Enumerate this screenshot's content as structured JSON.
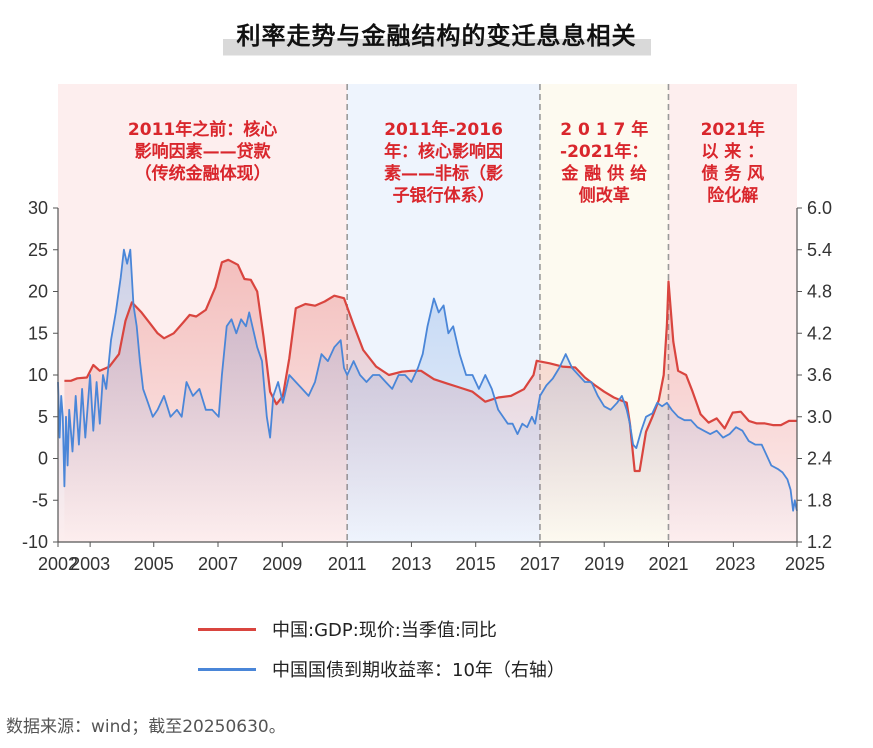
{
  "title": "利率走势与金融结构的变迁息息相关",
  "source": "数据来源：wind；截至20250630。",
  "colors": {
    "gdp": "#d9453f",
    "bond": "#4a86d8",
    "period1_bg": "#fdeeee",
    "period2_bg": "#eef4fd",
    "period3_bg": "#fdfaf0",
    "period4_bg": "#fdeeee",
    "annotation": "#d9262c"
  },
  "periods": [
    {
      "start": 2002.0,
      "end": 2011.0,
      "label_lines": [
        "2011年之前：核心",
        "影响因素——贷款",
        "（传统金融体现）"
      ]
    },
    {
      "start": 2011.0,
      "end": 2017.0,
      "label_lines": [
        "2011年-2016",
        "年：核心影响因",
        "素——非标（影",
        "子银行体系）"
      ]
    },
    {
      "start": 2017.0,
      "end": 2021.0,
      "label_lines": [
        "2 0 1 7 年",
        "-2021年：",
        "金 融 供 给",
        "侧改革"
      ]
    },
    {
      "start": 2021.0,
      "end": 2025.0,
      "label_lines": [
        "2021年",
        "以 来 ：",
        "债 务 风",
        "险化解"
      ]
    }
  ],
  "chart_data": {
    "type": "line",
    "title": "利率走势与金融结构的变迁息息相关",
    "x_ticks": [
      "2002",
      "2003",
      "2005",
      "2007",
      "2009",
      "2011",
      "2013",
      "2015",
      "2017",
      "2019",
      "2021",
      "2023",
      "2025"
    ],
    "x_tick_positions": [
      2002,
      2003,
      2004.98,
      2006.98,
      2008.98,
      2011,
      2013,
      2015,
      2017,
      2019,
      2021,
      2023.02,
      2025
    ],
    "xlim": [
      2002,
      2025
    ],
    "y_left": {
      "ticks": [
        30,
        25,
        20,
        15,
        10,
        5,
        0,
        -5,
        -10
      ],
      "lim": [
        -10,
        30
      ]
    },
    "y_right": {
      "ticks": [
        "6.0",
        "5.4",
        "4.8",
        "4.2",
        "3.6",
        "3.0",
        "2.4",
        "1.8",
        "1.2"
      ],
      "lim": [
        1.2,
        6.0
      ]
    },
    "grid": false,
    "legend_position": "bottom",
    "series": [
      {
        "name": "中国:GDP:现价:当季值:同比",
        "axis": "left",
        "points": [
          [
            2002.2,
            9.3
          ],
          [
            2002.4,
            9.3
          ],
          [
            2002.6,
            9.6
          ],
          [
            2002.9,
            9.7
          ],
          [
            2003.1,
            11.2
          ],
          [
            2003.3,
            10.5
          ],
          [
            2003.6,
            11.0
          ],
          [
            2003.9,
            12.5
          ],
          [
            2004.1,
            16.5
          ],
          [
            2004.3,
            18.7
          ],
          [
            2004.6,
            17.5
          ],
          [
            2004.9,
            16.0
          ],
          [
            2005.1,
            15.0
          ],
          [
            2005.3,
            14.4
          ],
          [
            2005.6,
            15.0
          ],
          [
            2005.9,
            16.3
          ],
          [
            2006.1,
            17.2
          ],
          [
            2006.3,
            17.0
          ],
          [
            2006.6,
            17.8
          ],
          [
            2006.9,
            20.5
          ],
          [
            2007.1,
            23.5
          ],
          [
            2007.3,
            23.8
          ],
          [
            2007.6,
            23.2
          ],
          [
            2007.8,
            21.5
          ],
          [
            2008.0,
            21.4
          ],
          [
            2008.2,
            20.0
          ],
          [
            2008.4,
            14.5
          ],
          [
            2008.6,
            8.0
          ],
          [
            2008.8,
            6.5
          ],
          [
            2009.0,
            7.5
          ],
          [
            2009.2,
            12.0
          ],
          [
            2009.4,
            18.0
          ],
          [
            2009.7,
            18.5
          ],
          [
            2010.0,
            18.3
          ],
          [
            2010.3,
            18.8
          ],
          [
            2010.6,
            19.5
          ],
          [
            2010.9,
            19.2
          ],
          [
            2011.2,
            16.0
          ],
          [
            2011.5,
            13.0
          ],
          [
            2011.9,
            11.0
          ],
          [
            2012.3,
            10.0
          ],
          [
            2012.7,
            10.4
          ],
          [
            2013.0,
            10.5
          ],
          [
            2013.3,
            10.5
          ],
          [
            2013.7,
            9.5
          ],
          [
            2014.1,
            9.0
          ],
          [
            2014.5,
            8.5
          ],
          [
            2014.9,
            8.0
          ],
          [
            2015.3,
            6.8
          ],
          [
            2015.7,
            7.3
          ],
          [
            2016.1,
            7.5
          ],
          [
            2016.5,
            8.3
          ],
          [
            2016.8,
            10.0
          ],
          [
            2016.9,
            11.7
          ],
          [
            2017.3,
            11.4
          ],
          [
            2017.7,
            11.0
          ],
          [
            2018.1,
            10.9
          ],
          [
            2018.4,
            9.7
          ],
          [
            2018.7,
            8.8
          ],
          [
            2019.0,
            8.0
          ],
          [
            2019.3,
            7.3
          ],
          [
            2019.5,
            7.0
          ],
          [
            2019.7,
            6.7
          ],
          [
            2019.8,
            4.2
          ],
          [
            2019.95,
            -1.5
          ],
          [
            2020.1,
            -1.5
          ],
          [
            2020.3,
            3.2
          ],
          [
            2020.5,
            5.0
          ],
          [
            2020.7,
            7.0
          ],
          [
            2020.85,
            10.0
          ],
          [
            2020.95,
            16.0
          ],
          [
            2021.0,
            21.2
          ],
          [
            2021.15,
            14.0
          ],
          [
            2021.3,
            10.5
          ],
          [
            2021.55,
            10.0
          ],
          [
            2021.75,
            8.0
          ],
          [
            2022.0,
            5.3
          ],
          [
            2022.25,
            4.3
          ],
          [
            2022.5,
            4.8
          ],
          [
            2022.75,
            3.6
          ],
          [
            2023.0,
            5.5
          ],
          [
            2023.25,
            5.6
          ],
          [
            2023.5,
            4.5
          ],
          [
            2023.75,
            4.2
          ],
          [
            2024.0,
            4.2
          ],
          [
            2024.25,
            4.0
          ],
          [
            2024.5,
            4.0
          ],
          [
            2024.75,
            4.5
          ],
          [
            2025.0,
            4.5
          ]
        ]
      },
      {
        "name": "中国国债到期收益率：10年（右轴）",
        "axis": "right",
        "points": [
          [
            2002.0,
            3.5
          ],
          [
            2002.05,
            2.7
          ],
          [
            2002.1,
            3.3
          ],
          [
            2002.15,
            3.0
          ],
          [
            2002.2,
            2.0
          ],
          [
            2002.25,
            3.0
          ],
          [
            2002.3,
            2.3
          ],
          [
            2002.35,
            3.1
          ],
          [
            2002.45,
            2.5
          ],
          [
            2002.55,
            3.3
          ],
          [
            2002.65,
            2.6
          ],
          [
            2002.75,
            3.4
          ],
          [
            2002.85,
            2.7
          ],
          [
            2003.0,
            3.6
          ],
          [
            2003.1,
            2.8
          ],
          [
            2003.2,
            3.5
          ],
          [
            2003.3,
            2.9
          ],
          [
            2003.4,
            3.6
          ],
          [
            2003.5,
            3.4
          ],
          [
            2003.65,
            4.1
          ],
          [
            2003.8,
            4.5
          ],
          [
            2003.95,
            5.0
          ],
          [
            2004.05,
            5.4
          ],
          [
            2004.15,
            5.2
          ],
          [
            2004.25,
            5.4
          ],
          [
            2004.35,
            4.6
          ],
          [
            2004.45,
            4.3
          ],
          [
            2004.55,
            3.8
          ],
          [
            2004.65,
            3.4
          ],
          [
            2004.8,
            3.2
          ],
          [
            2004.95,
            3.0
          ],
          [
            2005.1,
            3.1
          ],
          [
            2005.3,
            3.3
          ],
          [
            2005.5,
            3.0
          ],
          [
            2005.7,
            3.1
          ],
          [
            2005.85,
            3.0
          ],
          [
            2006.0,
            3.5
          ],
          [
            2006.2,
            3.3
          ],
          [
            2006.4,
            3.4
          ],
          [
            2006.6,
            3.1
          ],
          [
            2006.8,
            3.1
          ],
          [
            2007.0,
            3.0
          ],
          [
            2007.1,
            3.6
          ],
          [
            2007.25,
            4.3
          ],
          [
            2007.4,
            4.4
          ],
          [
            2007.55,
            4.2
          ],
          [
            2007.7,
            4.4
          ],
          [
            2007.85,
            4.3
          ],
          [
            2007.95,
            4.5
          ],
          [
            2008.05,
            4.3
          ],
          [
            2008.2,
            4.0
          ],
          [
            2008.35,
            3.8
          ],
          [
            2008.5,
            3.0
          ],
          [
            2008.6,
            2.7
          ],
          [
            2008.7,
            3.3
          ],
          [
            2008.85,
            3.5
          ],
          [
            2009.0,
            3.2
          ],
          [
            2009.2,
            3.6
          ],
          [
            2009.4,
            3.5
          ],
          [
            2009.6,
            3.4
          ],
          [
            2009.8,
            3.3
          ],
          [
            2010.0,
            3.5
          ],
          [
            2010.2,
            3.9
          ],
          [
            2010.4,
            3.8
          ],
          [
            2010.6,
            4.0
          ],
          [
            2010.8,
            4.1
          ],
          [
            2010.9,
            3.7
          ],
          [
            2011.0,
            3.6
          ],
          [
            2011.2,
            3.8
          ],
          [
            2011.4,
            3.6
          ],
          [
            2011.6,
            3.5
          ],
          [
            2011.8,
            3.6
          ],
          [
            2012.0,
            3.6
          ],
          [
            2012.2,
            3.5
          ],
          [
            2012.4,
            3.4
          ],
          [
            2012.6,
            3.6
          ],
          [
            2012.8,
            3.6
          ],
          [
            2013.0,
            3.5
          ],
          [
            2013.2,
            3.7
          ],
          [
            2013.35,
            3.9
          ],
          [
            2013.5,
            4.3
          ],
          [
            2013.7,
            4.7
          ],
          [
            2013.85,
            4.5
          ],
          [
            2014.0,
            4.6
          ],
          [
            2014.15,
            4.2
          ],
          [
            2014.3,
            4.3
          ],
          [
            2014.5,
            3.9
          ],
          [
            2014.7,
            3.6
          ],
          [
            2014.9,
            3.6
          ],
          [
            2015.1,
            3.4
          ],
          [
            2015.3,
            3.6
          ],
          [
            2015.5,
            3.4
          ],
          [
            2015.7,
            3.1
          ],
          [
            2015.85,
            3.0
          ],
          [
            2016.0,
            2.9
          ],
          [
            2016.15,
            2.9
          ],
          [
            2016.3,
            2.75
          ],
          [
            2016.45,
            2.9
          ],
          [
            2016.6,
            2.85
          ],
          [
            2016.75,
            3.0
          ],
          [
            2016.85,
            2.9
          ],
          [
            2017.0,
            3.3
          ],
          [
            2017.2,
            3.45
          ],
          [
            2017.4,
            3.55
          ],
          [
            2017.6,
            3.7
          ],
          [
            2017.8,
            3.9
          ],
          [
            2018.0,
            3.7
          ],
          [
            2018.2,
            3.6
          ],
          [
            2018.4,
            3.5
          ],
          [
            2018.6,
            3.5
          ],
          [
            2018.8,
            3.3
          ],
          [
            2019.0,
            3.15
          ],
          [
            2019.2,
            3.1
          ],
          [
            2019.4,
            3.2
          ],
          [
            2019.55,
            3.3
          ],
          [
            2019.7,
            3.1
          ],
          [
            2019.8,
            2.9
          ],
          [
            2019.9,
            2.6
          ],
          [
            2020.0,
            2.55
          ],
          [
            2020.15,
            2.8
          ],
          [
            2020.3,
            3.0
          ],
          [
            2020.5,
            3.05
          ],
          [
            2020.65,
            3.2
          ],
          [
            2020.8,
            3.15
          ],
          [
            2020.95,
            3.2
          ],
          [
            2021.1,
            3.1
          ],
          [
            2021.3,
            3.0
          ],
          [
            2021.5,
            2.95
          ],
          [
            2021.7,
            2.95
          ],
          [
            2021.9,
            2.85
          ],
          [
            2022.1,
            2.8
          ],
          [
            2022.3,
            2.75
          ],
          [
            2022.5,
            2.8
          ],
          [
            2022.7,
            2.7
          ],
          [
            2022.9,
            2.75
          ],
          [
            2023.1,
            2.85
          ],
          [
            2023.3,
            2.8
          ],
          [
            2023.5,
            2.65
          ],
          [
            2023.7,
            2.6
          ],
          [
            2023.9,
            2.6
          ],
          [
            2024.05,
            2.45
          ],
          [
            2024.2,
            2.3
          ],
          [
            2024.4,
            2.25
          ],
          [
            2024.55,
            2.2
          ],
          [
            2024.7,
            2.1
          ],
          [
            2024.8,
            1.95
          ],
          [
            2024.88,
            1.65
          ],
          [
            2024.93,
            1.8
          ],
          [
            2024.98,
            1.68
          ],
          [
            2025.0,
            1.65
          ]
        ]
      }
    ]
  }
}
